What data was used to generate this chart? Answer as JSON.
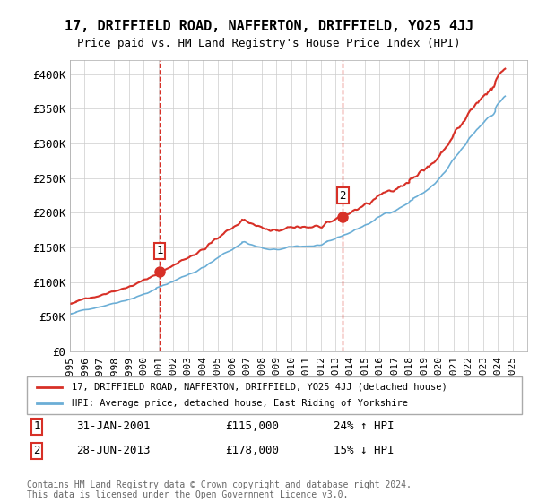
{
  "title": "17, DRIFFIELD ROAD, NAFFERTON, DRIFFIELD, YO25 4JJ",
  "subtitle": "Price paid vs. HM Land Registry's House Price Index (HPI)",
  "xlabel": "",
  "ylabel": "",
  "ylim": [
    0,
    420000
  ],
  "yticks": [
    0,
    50000,
    100000,
    150000,
    200000,
    250000,
    300000,
    350000,
    400000
  ],
  "ytick_labels": [
    "£0",
    "£50K",
    "£100K",
    "£150K",
    "£200K",
    "£250K",
    "£300K",
    "£350K",
    "£400K"
  ],
  "hpi_color": "#6baed6",
  "price_color": "#d73027",
  "marker1_date_idx": 73,
  "marker2_date_idx": 222,
  "marker1_price": 115000,
  "marker2_price": 178000,
  "legend_price_label": "17, DRIFFIELD ROAD, NAFFERTON, DRIFFIELD, YO25 4JJ (detached house)",
  "legend_hpi_label": "HPI: Average price, detached house, East Riding of Yorkshire",
  "table_row1": "1    31-JAN-2001    £115,000    24% ↑ HPI",
  "table_row2": "2    28-JUN-2013    £178,000    15% ↓ HPI",
  "footnote": "Contains HM Land Registry data © Crown copyright and database right 2024.\nThis data is licensed under the Open Government Licence v3.0.",
  "background_color": "#ffffff",
  "grid_color": "#cccccc"
}
